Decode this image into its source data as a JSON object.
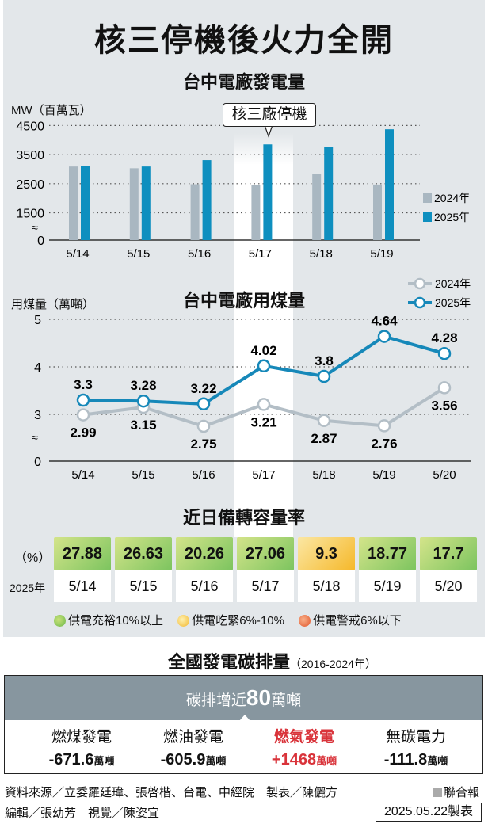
{
  "title": "核三停機後火力全開",
  "chart1": {
    "title": "台中電廠發電量",
    "unit": "MW（百萬瓦）",
    "callout": "核三廠停機",
    "break_symbol": "≈"
  },
  "chart2": {
    "title": "台中電廠用煤量",
    "unit": "用煤量（萬噸）",
    "break_symbol": "≈"
  },
  "reserve": {
    "title": "近日備轉容量率",
    "row_label_value": "（%）",
    "row_label_date": "2025年",
    "values": [
      "27.88",
      "26.63",
      "20.26",
      "27.06",
      "9.3",
      "18.77",
      "17.7"
    ],
    "status": [
      "ok",
      "ok",
      "ok",
      "ok",
      "tight",
      "ok",
      "ok"
    ],
    "dates": [
      "5/14",
      "5/15",
      "5/16",
      "5/17",
      "5/18",
      "5/19",
      "5/20"
    ],
    "legend": [
      {
        "label": "供電充裕10%以上",
        "color": "#7cc45f"
      },
      {
        "label": "供電吃緊6%-10%",
        "color": "#f5c53a"
      },
      {
        "label": "供電警戒6%以下",
        "color": "#e8652f"
      }
    ]
  },
  "carbon": {
    "title": "全國發電碳排量",
    "period": "（2016-2024年）",
    "headline_prefix": "碳排增近",
    "headline_number": "80",
    "headline_unit": "萬噸",
    "items": [
      {
        "name": "燃煤發電",
        "value": "-671.6",
        "unit": "萬噸"
      },
      {
        "name": "燃油發電",
        "value": "-605.9",
        "unit": "萬噸"
      },
      {
        "name": "燃氣發電",
        "value": "+1468",
        "unit": "萬噸"
      },
      {
        "name": "無碳電力",
        "value": "-111.8",
        "unit": "萬噸"
      }
    ]
  },
  "footer": {
    "source": "資料來源／立委羅廷瑋、張啓楷、台電、中經院　製表／陳儷方",
    "editors": "編輯／張幼芳　視覺／陳姿宜",
    "publisher": "聯合報",
    "date": "2025.05.22製表"
  },
  "colors": {
    "y2024": "#a9b7c1",
    "y2025": "#0e8fbf",
    "line2024": "#b3bec6",
    "line2025": "#1688b9",
    "red": "#d9333a"
  },
  "chart_data": [
    {
      "type": "bar",
      "title": "台中電廠發電量",
      "ylabel": "MW（百萬瓦）",
      "categories": [
        "5/14",
        "5/15",
        "5/16",
        "5/17",
        "5/18",
        "5/19"
      ],
      "yticks": [
        "0",
        "1500",
        "2500",
        "3500",
        "4500"
      ],
      "ylim": [
        0,
        4500
      ],
      "axis_break": [
        0,
        1500
      ],
      "series": [
        {
          "name": "2024年",
          "values": [
            3090,
            3030,
            2480,
            2440,
            2840,
            2470
          ]
        },
        {
          "name": "2025年",
          "values": [
            3120,
            3090,
            3310,
            3850,
            3750,
            4370
          ]
        }
      ],
      "legend": "right"
    },
    {
      "type": "line",
      "title": "台中電廠用煤量",
      "ylabel": "用煤量（萬噸）",
      "categories": [
        "5/14",
        "5/15",
        "5/16",
        "5/17",
        "5/18",
        "5/19",
        "5/20"
      ],
      "yticks": [
        "0",
        "3",
        "4",
        "5"
      ],
      "ylim": [
        0,
        5
      ],
      "axis_break": [
        0,
        3
      ],
      "series": [
        {
          "name": "2024年",
          "values": [
            2.99,
            3.15,
            2.75,
            3.21,
            2.87,
            2.76,
            3.56
          ],
          "labels": [
            "2.99",
            "3.15",
            "2.75",
            "3.21",
            "2.87",
            "2.76",
            "3.56"
          ]
        },
        {
          "name": "2025年",
          "values": [
            3.3,
            3.28,
            3.22,
            4.02,
            3.8,
            4.64,
            4.28
          ],
          "labels": [
            "3.3",
            "3.28",
            "3.22",
            "4.02",
            "3.8",
            "4.64",
            "4.28"
          ]
        }
      ],
      "legend": "top-right"
    }
  ]
}
